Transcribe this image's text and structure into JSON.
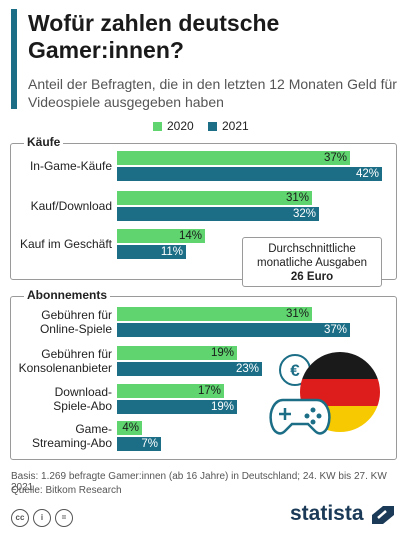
{
  "header": {
    "title": "Wofür zahlen deutsche Gamer:innen?",
    "subtitle": "Anteil der Befragten, die in den letzten 12 Monaten Geld für Videospiele ausgegeben haben"
  },
  "callout": {
    "line1": "Durchschnittliche",
    "line2": "monatliche Ausgaben",
    "value": "26 Euro"
  },
  "footer": {
    "basis": "Basis: 1.269 befragte Gamer:innen (ab 16 Jahre) in Deutschland; 24. KW bis 27. KW 2021",
    "source": "Quelle: Bitkom Research",
    "brand": "statista"
  },
  "icons": [
    "cc-icon",
    "by-icon",
    "nd-icon",
    "gamepad-icon",
    "euro-coin-icon",
    "germany-flag-icon",
    "statista-logo-icon"
  ],
  "colors": {
    "2020": "#5fd46f",
    "2021": "#1c6e86",
    "accent": "#1c6e86",
    "brand": "#1b3a57"
  },
  "chart_data": {
    "type": "bar",
    "orientation": "horizontal",
    "unit": "%",
    "xlim": [
      0,
      42
    ],
    "series": [
      {
        "name": "2020",
        "color": "#5fd46f"
      },
      {
        "name": "2021",
        "color": "#1c6e86"
      }
    ],
    "groups": [
      {
        "title": "Käufe",
        "categories": [
          {
            "label": "In-Game-Käufe",
            "values": [
              37,
              42
            ]
          },
          {
            "label": "Kauf/Download",
            "values": [
              31,
              32
            ]
          },
          {
            "label": "Kauf im Geschäft",
            "values": [
              14,
              11
            ]
          }
        ]
      },
      {
        "title": "Abonnements",
        "categories": [
          {
            "label": "Gebühren für Online-Spiele",
            "values": [
              31,
              37
            ]
          },
          {
            "label": "Gebühren für Konsolenanbieter",
            "values": [
              19,
              23
            ]
          },
          {
            "label": "Download-Spiele-Abo",
            "values": [
              17,
              19
            ]
          },
          {
            "label": "Game-Streaming-Abo",
            "values": [
              4,
              7
            ]
          }
        ]
      }
    ]
  }
}
